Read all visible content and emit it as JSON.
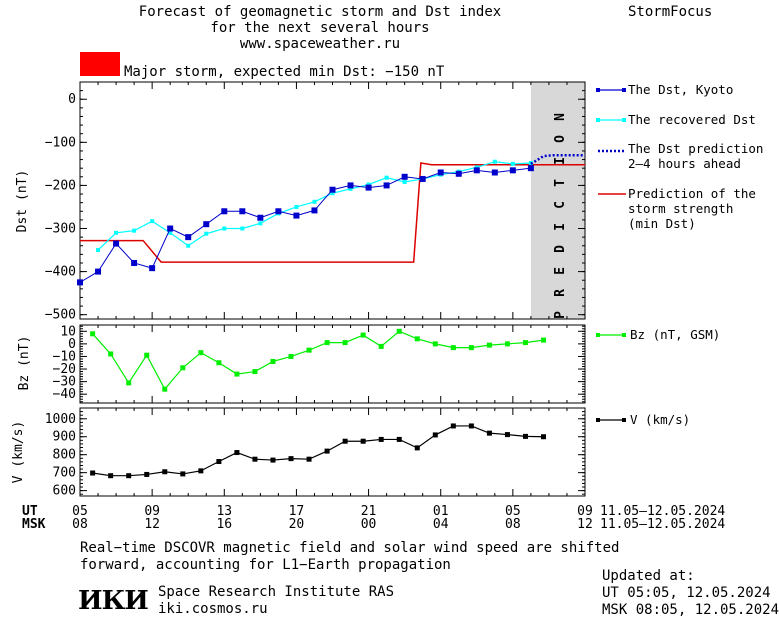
{
  "header": {
    "title_line1": "Forecast of geomagnetic storm and Dst index",
    "title_line2": "for the next several hours",
    "title_line3": "www.spaceweather.ru",
    "brand": "StormFocus",
    "storm_label": "Major storm, expected min Dst: −150 nT",
    "storm_color": "#ff0000"
  },
  "prediction_label": "PREDICTION",
  "time_axis": {
    "ut_label": "UT",
    "msk_label": "MSK",
    "ut_ticks": [
      "05",
      "09",
      "13",
      "17",
      "21",
      "01",
      "05",
      "09"
    ],
    "msk_ticks": [
      "08",
      "12",
      "16",
      "20",
      "00",
      "04",
      "08",
      "12"
    ],
    "ut_range": "11.05–12.05.2024",
    "msk_range": "11.05–12.05.2024"
  },
  "legend": {
    "dst_kyoto": "The Dst, Kyoto",
    "recovered": "The recovered Dst",
    "prediction_l1": "The Dst prediction",
    "prediction_l2": "2–4 hours ahead",
    "strength_l1": "Prediction of the",
    "strength_l2": "storm strength",
    "strength_l3": "(min Dst)",
    "bz": "Bz (nT, GSM)",
    "v": "V (km/s)"
  },
  "footer": {
    "note_l1": "Real−time DSCOVR magnetic field and solar wind speed are shifted",
    "note_l2": "forward, accounting for L1−Earth propagation",
    "logo": "ИКИ",
    "institute": "Space Research Institute RAS",
    "site": "iki.cosmos.ru",
    "updated_label": "Updated at:",
    "updated_ut": "UT   05:05, 12.05.2024",
    "updated_msk": "MSK 08:05, 12.05.2024"
  },
  "chart_data": [
    {
      "type": "line",
      "ylabel": "Dst (nT)",
      "ylim": [
        -510,
        40
      ],
      "yticks": [
        0,
        -100,
        -200,
        -300,
        -400,
        -500
      ],
      "xlim": [
        5,
        33
      ],
      "prediction_region": [
        30,
        33
      ],
      "colors": {
        "dst": "#0000cc",
        "recovered": "#00ffff",
        "prediction": "#0000cc",
        "strength": "#dd0000",
        "shade": "#d8d8d8"
      },
      "series": [
        {
          "name": "The Dst, Kyoto",
          "x": [
            5,
            6,
            7,
            8,
            9,
            10,
            11,
            12,
            13,
            14,
            15,
            16,
            17,
            18,
            19,
            20,
            21,
            22,
            23,
            24,
            25,
            26,
            27,
            28,
            29,
            30
          ],
          "y": [
            -425,
            -400,
            -335,
            -380,
            -392,
            -300,
            -320,
            -290,
            -260,
            -260,
            -275,
            -260,
            -270,
            -258,
            -210,
            -200,
            -205,
            -200,
            -180,
            -185,
            -170,
            -173,
            -165,
            -170,
            -165,
            -160
          ]
        },
        {
          "name": "The recovered Dst",
          "x": [
            6,
            7,
            8,
            9,
            10,
            11,
            12,
            13,
            14,
            15,
            16,
            17,
            18,
            19,
            20,
            21,
            22,
            23,
            24,
            25,
            26,
            27,
            28,
            29,
            30
          ],
          "y": [
            -350,
            -310,
            -305,
            -283,
            -310,
            -340,
            -312,
            -300,
            -300,
            -288,
            -265,
            -250,
            -238,
            -218,
            -208,
            -198,
            -182,
            -192,
            -185,
            -175,
            -168,
            -158,
            -145,
            -150,
            -148
          ]
        },
        {
          "name": "The Dst prediction 2–4 hours ahead",
          "x": [
            30,
            30.7,
            31.2,
            33
          ],
          "y": [
            -150,
            -132,
            -130,
            -130
          ]
        },
        {
          "name": "Prediction of the storm strength (min Dst)",
          "x": [
            5,
            8.5,
            9.5,
            23.5,
            23.9,
            24.5,
            33
          ],
          "y": [
            -328,
            -328,
            -378,
            -378,
            -148,
            -152,
            -152
          ]
        }
      ]
    },
    {
      "type": "line",
      "ylabel": "Bz (nT)",
      "ylim": [
        -47,
        15
      ],
      "yticks": [
        10,
        0,
        -10,
        -20,
        -30,
        -40
      ],
      "xlim": [
        5,
        33
      ],
      "color": "#00ee00",
      "series": [
        {
          "name": "Bz (nT, GSM)",
          "x": [
            5.7,
            6.7,
            7.7,
            8.7,
            9.7,
            10.7,
            11.7,
            12.7,
            13.7,
            14.7,
            15.7,
            16.7,
            17.7,
            18.7,
            19.7,
            20.7,
            21.7,
            22.7,
            23.7,
            24.7,
            25.7,
            26.7,
            27.7,
            28.7,
            29.7,
            30.7
          ],
          "y": [
            8,
            -8,
            -31,
            -9,
            -36,
            -19,
            -7,
            -15,
            -24,
            -22,
            -14,
            -10,
            -5,
            1,
            1,
            7,
            -2,
            10,
            4,
            0,
            -3,
            -3,
            -1,
            0,
            1,
            3
          ]
        }
      ]
    },
    {
      "type": "line",
      "ylabel": "V (km/s)",
      "ylim": [
        570,
        1060
      ],
      "yticks": [
        1000,
        900,
        800,
        700,
        600
      ],
      "xlim": [
        5,
        33
      ],
      "color": "#000000",
      "series": [
        {
          "name": "V (km/s)",
          "x": [
            5.7,
            6.7,
            7.7,
            8.7,
            9.7,
            10.7,
            11.7,
            12.7,
            13.7,
            14.7,
            15.7,
            16.7,
            17.7,
            18.7,
            19.7,
            20.7,
            21.7,
            22.7,
            23.7,
            24.7,
            25.7,
            26.7,
            27.7,
            28.7,
            29.7,
            30.7
          ],
          "y": [
            698,
            683,
            683,
            690,
            705,
            693,
            710,
            762,
            812,
            775,
            770,
            778,
            775,
            820,
            875,
            875,
            885,
            885,
            838,
            910,
            960,
            960,
            920,
            912,
            902,
            900
          ]
        }
      ]
    }
  ]
}
